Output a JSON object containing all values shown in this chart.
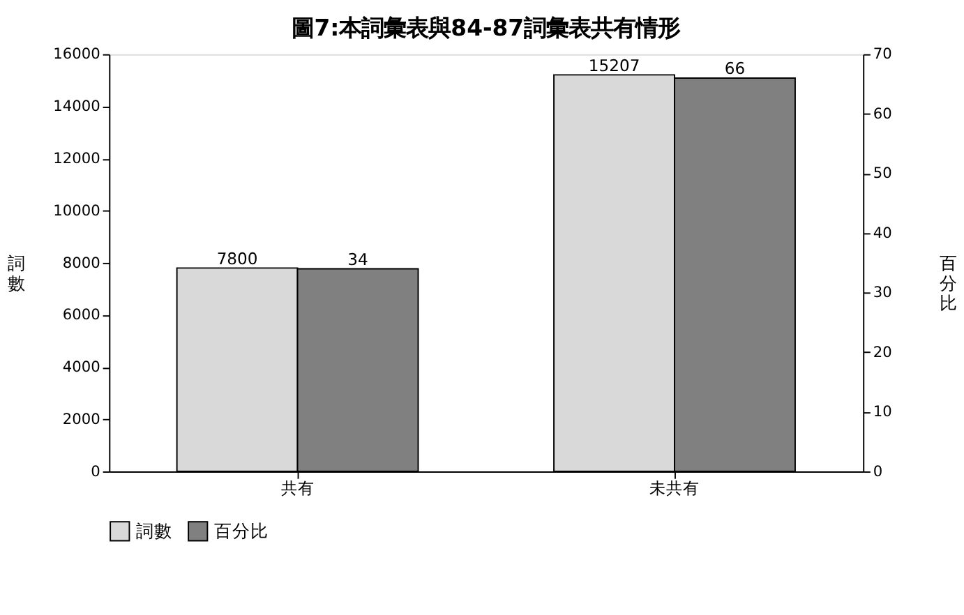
{
  "chart_data": {
    "type": "bar",
    "title": "圖7:本詞彙表與84-87詞彙表共有情形",
    "categories": [
      "共有",
      "未共有"
    ],
    "series": [
      {
        "name": "詞數",
        "color": "#d9d9d9",
        "values": [
          7800,
          15207
        ]
      },
      {
        "name": "百分比",
        "color": "#808080",
        "values": [
          34,
          66
        ],
        "axis": "y2"
      }
    ],
    "ylabel": "詞數",
    "y2label": "百分比",
    "ylim": [
      0,
      16000
    ],
    "yticks": [
      0,
      2000,
      4000,
      6000,
      8000,
      10000,
      12000,
      14000,
      16000
    ],
    "y2lim": [
      0,
      70
    ],
    "y2ticks": [
      0,
      10,
      20,
      30,
      40,
      50,
      60,
      70
    ],
    "data_labels": true,
    "legend": "bottom",
    "grid": false
  }
}
